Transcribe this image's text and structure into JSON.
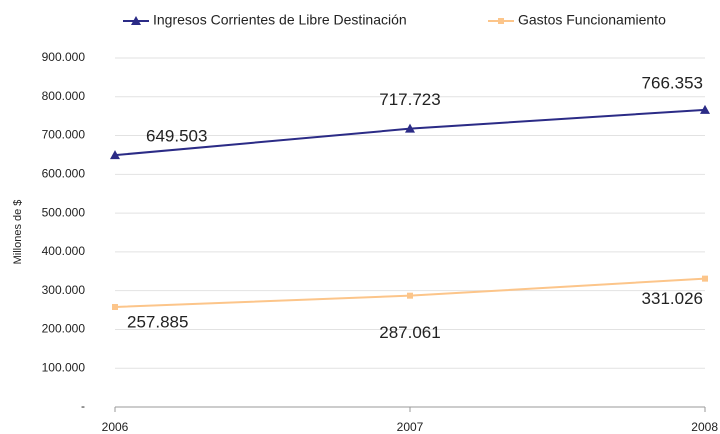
{
  "chart_data": {
    "type": "line",
    "categories": [
      "2006",
      "2007",
      "2008"
    ],
    "y_label": "Millones de $",
    "series": [
      {
        "name": "Ingresos Corrientes de Libre Destinación",
        "color": "#2b2b86",
        "marker": "triangle",
        "values": [
          649503,
          717723,
          766353
        ],
        "value_labels": [
          "649.503",
          "717.723",
          "766.353"
        ]
      },
      {
        "name": "Gastos Funcionamiento",
        "color": "#fcc58a",
        "marker": "square",
        "values": [
          257885,
          287061,
          331026
        ],
        "value_labels": [
          "257.885",
          "287.061",
          "331.026"
        ]
      }
    ],
    "ylim": [
      0,
      900000
    ],
    "yticks": [
      {
        "value": 0,
        "label": "-"
      },
      {
        "value": 100000,
        "label": "100.000"
      },
      {
        "value": 200000,
        "label": "200.000"
      },
      {
        "value": 300000,
        "label": "300.000"
      },
      {
        "value": 400000,
        "label": "400.000"
      },
      {
        "value": 500000,
        "label": "500.000"
      },
      {
        "value": 600000,
        "label": "600.000"
      },
      {
        "value": 700000,
        "label": "700.000"
      },
      {
        "value": 800000,
        "label": "800.000"
      },
      {
        "value": 900000,
        "label": "900.000"
      }
    ],
    "grid": true,
    "legend": "top"
  }
}
